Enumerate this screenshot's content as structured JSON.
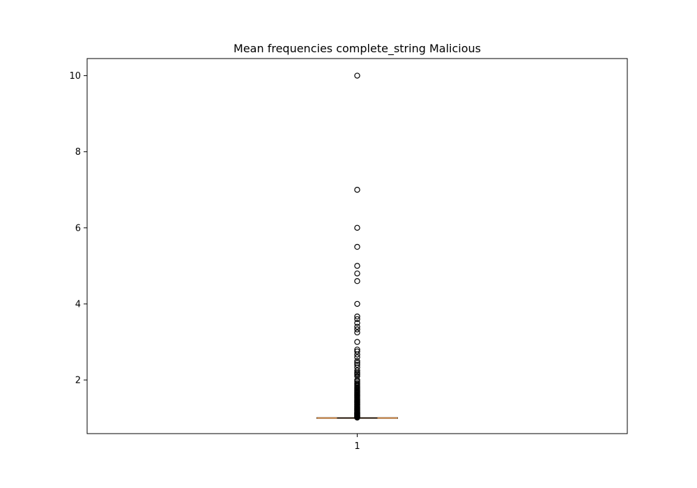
{
  "chart_data": {
    "type": "box",
    "title": "Mean frequencies complete_string Malicious",
    "xlabel": "",
    "ylabel": "",
    "categories": [
      "1"
    ],
    "ylim": [
      0.59,
      10.45
    ],
    "yticks": [
      2,
      4,
      6,
      8,
      10
    ],
    "grid": false,
    "boxes": [
      {
        "category": "1",
        "whisker_low": 1.0,
        "q1": 1.0,
        "median": 1.0,
        "q3": 1.0,
        "whisker_high": 1.0,
        "outliers": [
          10.0,
          7.0,
          6.0,
          5.5,
          5.0,
          4.8,
          4.6,
          4.0,
          3.67,
          3.6,
          3.5,
          3.4,
          3.33,
          3.25,
          3.0,
          2.8,
          2.75,
          2.67,
          2.6,
          2.5,
          2.45,
          2.4,
          2.33,
          2.25,
          2.2,
          2.17,
          2.14,
          2.1,
          2.0,
          1.96,
          1.92,
          1.89,
          1.86,
          1.83,
          1.8,
          1.78,
          1.75,
          1.73,
          1.71,
          1.69,
          1.67,
          1.65,
          1.63,
          1.61,
          1.6,
          1.58,
          1.56,
          1.54,
          1.52,
          1.5,
          1.48,
          1.46,
          1.44,
          1.43,
          1.41,
          1.4,
          1.38,
          1.36,
          1.35,
          1.33,
          1.31,
          1.3,
          1.28,
          1.27,
          1.25,
          1.24,
          1.22,
          1.21,
          1.2,
          1.18,
          1.17,
          1.15,
          1.14,
          1.13,
          1.12,
          1.11,
          1.1,
          1.09,
          1.08,
          1.07,
          1.06,
          1.05,
          1.04,
          1.03,
          1.02,
          1.01
        ]
      }
    ],
    "colors": {
      "axes": "#000000",
      "median": "#e08a3a",
      "box": "#000000",
      "outlier_edge": "#000000"
    }
  }
}
